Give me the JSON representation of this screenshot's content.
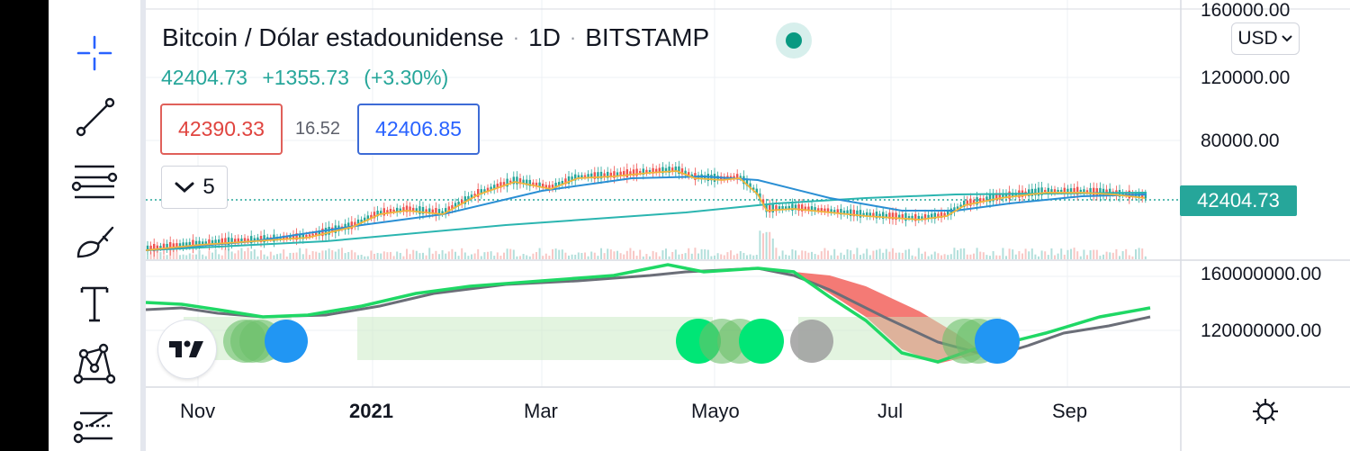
{
  "header": {
    "symbol": "Bitcoin / Dólar estadounidense",
    "interval": "1D",
    "exchange": "BITSTAMP",
    "last_price": "42404.73",
    "change": "+1355.73",
    "change_pct": "(+3.30%)"
  },
  "quotes": {
    "bid": "42390.33",
    "spread": "16.52",
    "ask": "42406.85"
  },
  "indicators": {
    "collapsed_count": "5"
  },
  "currency": "USD",
  "price_axis": {
    "top_cut": "160000.00",
    "labels": [
      "120000.00",
      "80000.00"
    ],
    "current_price_tag": "42404.73"
  },
  "volume_axis": {
    "labels": [
      "160000000.00",
      "120000000.00"
    ]
  },
  "time_axis": {
    "labels": [
      "Nov",
      "2021",
      "Mar",
      "Mayo",
      "Jul",
      "Sep"
    ]
  },
  "colors": {
    "up": "#26a69a",
    "down": "#ef5350",
    "bid": "#e0443f",
    "ask": "#2962ff",
    "fast_ma": "#f2b53c",
    "mid_ma": "#2a8fd4",
    "slow_ma": "#2bb5b0",
    "osc_green": "#1fd865",
    "osc_gray": "#6b6e78",
    "osc_fill_red": "#f36b66",
    "dot_blue": "#2196f3",
    "dot_green": "#00e676",
    "dot_gray": "#9e9e9e"
  },
  "toolbar": {
    "tools": [
      "crosshair-icon",
      "trend-line-icon",
      "fib-levels-icon",
      "brush-icon",
      "text-icon",
      "pattern-icon",
      "forecast-icon"
    ]
  }
}
